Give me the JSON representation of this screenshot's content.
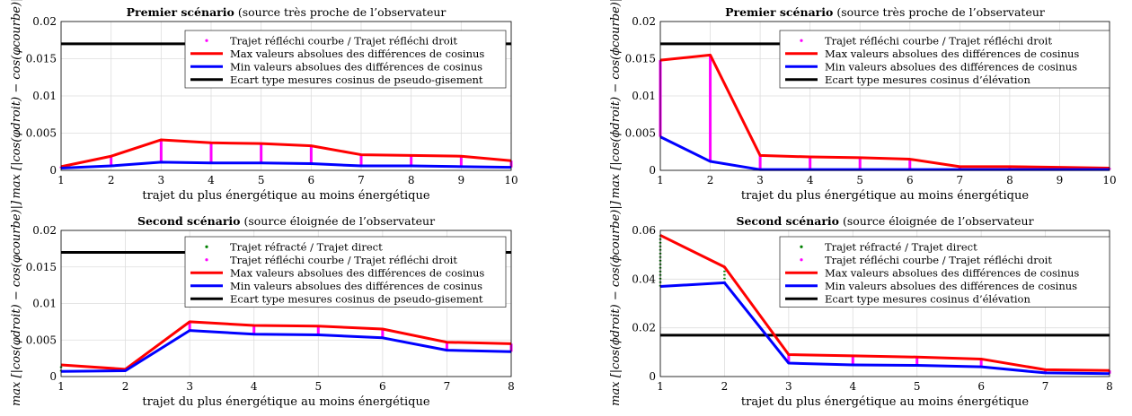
{
  "charts": [
    {
      "title_bold": "Premier scénario",
      "title_rest": " (source très proche de l’observateur",
      "xlabel": "trajet du plus énergétique au moins énergétique",
      "ylabel": "max [|cos(φdroit) − cos(φcourbe)|]",
      "ylabel_sym": "φ",
      "ticks_x": [
        "1",
        "2",
        "3",
        "4",
        "5",
        "6",
        "7",
        "8",
        "9",
        "10"
      ],
      "ticks_y": [
        "0",
        "0.005",
        "0.01",
        "0.015",
        "0.02"
      ],
      "legend": [
        "Trajet réfléchi courbe / Trajet réfléchi droit",
        "Max valeurs absolues des différences de cosinus",
        "Min valeurs absolues des différences de cosinus",
        "Ecart type mesures cosinus de pseudo-gisement"
      ]
    },
    {
      "title_bold": "Premier scénario",
      "title_rest": " (source très proche de l’observateur",
      "xlabel": "trajet du plus énergétique au moins énergétique",
      "ylabel": "max [|cos(ϕdroit) − cos(ϕcourbe)|]",
      "ylabel_sym": "ϕ",
      "ticks_x": [
        "1",
        "2",
        "3",
        "4",
        "5",
        "6",
        "7",
        "8",
        "9",
        "10"
      ],
      "ticks_y": [
        "0",
        "0.005",
        "0.01",
        "0.015",
        "0.02"
      ],
      "legend": [
        "Trajet réfléchi courbe / Trajet réfléchi droit",
        "Max valeurs absolues des différences de cosinus",
        "Min valeurs absolues des différences de cosinus",
        "Ecart type mesures cosinus d’élévation"
      ]
    },
    {
      "title_bold": "Second scénario",
      "title_rest": " (source éloignée de l’observateur",
      "xlabel": "trajet du plus énergétique au moins énergétique",
      "ylabel": "max [|cos(φdroit) − cos(φcourbe)|]",
      "ylabel_sym": "φ",
      "ticks_x": [
        "1",
        "2",
        "3",
        "4",
        "5",
        "6",
        "7",
        "8"
      ],
      "ticks_y": [
        "0",
        "0.005",
        "0.01",
        "0.015",
        "0.02"
      ],
      "legend": [
        "Trajet réfracté / Trajet direct",
        "Trajet réfléchi courbe / Trajet réfléchi droit",
        "Max valeurs absolues des différences de cosinus",
        "Min valeurs absolues des différences de cosinus",
        "Ecart type mesures cosinus de pseudo-gisement"
      ]
    },
    {
      "title_bold": "Second scénario",
      "title_rest": " (source éloignée de l’observateur",
      "xlabel": "trajet du plus énergétique au moins énergétique",
      "ylabel": "max [|cos(ϕdroit) − cos(ϕcourbe)|]",
      "ylabel_sym": "ϕ",
      "ticks_x": [
        "1",
        "2",
        "3",
        "4",
        "5",
        "6",
        "7",
        "8"
      ],
      "ticks_y": [
        "0",
        "0.02",
        "0.04",
        "0.06"
      ],
      "legend": [
        "Trajet réfracté / Trajet direct",
        "Trajet réfléchi courbe / Trajet réfléchi droit",
        "Max valeurs absolues des différences de cosinus",
        "Min valeurs absolues des différences de cosinus",
        "Ecart type mesures cosinus d’élévation"
      ]
    }
  ],
  "colors": {
    "max": "#ff0000",
    "min": "#0000ff",
    "std": "#000000",
    "reflected": "#ff00ff",
    "refracted": "#008000",
    "grid": "#dddddd"
  },
  "chart_data": [
    {
      "type": "line",
      "x": [
        1,
        2,
        3,
        4,
        5,
        6,
        7,
        8,
        9,
        10
      ],
      "xlim": [
        1,
        10
      ],
      "ylim": [
        0,
        0.02
      ],
      "grid": true,
      "legend_position": "top-right",
      "series": [
        {
          "name": "Max valeurs absolues des différences de cosinus",
          "values": [
            0.0005,
            0.0019,
            0.0041,
            0.0037,
            0.0036,
            0.0033,
            0.0021,
            0.002,
            0.0019,
            0.0013
          ]
        },
        {
          "name": "Min valeurs absolues des différences de cosinus",
          "values": [
            0.0003,
            0.0006,
            0.0011,
            0.001,
            0.001,
            0.0009,
            0.0006,
            0.0006,
            0.0005,
            0.0004
          ]
        },
        {
          "name": "Ecart type mesures cosinus de pseudo-gisement",
          "values": [
            0.017,
            0.017,
            0.017,
            0.017,
            0.017,
            0.017,
            0.017,
            0.017,
            0.017,
            0.017
          ]
        }
      ],
      "segments": [
        {
          "name": "Trajet réfléchi courbe / Trajet réfléchi droit",
          "x": [
            1,
            2,
            3,
            4,
            5,
            6,
            7,
            8,
            9,
            10
          ]
        }
      ]
    },
    {
      "type": "line",
      "x": [
        1,
        2,
        3,
        4,
        5,
        6,
        7,
        8,
        9,
        10
      ],
      "xlim": [
        1,
        10
      ],
      "ylim": [
        0,
        0.02
      ],
      "grid": true,
      "legend_position": "top-right",
      "series": [
        {
          "name": "Max valeurs absolues des différences de cosinus",
          "values": [
            0.0148,
            0.0155,
            0.002,
            0.0018,
            0.0017,
            0.0015,
            0.0005,
            0.0005,
            0.0004,
            0.0003
          ]
        },
        {
          "name": "Min valeurs absolues des différences de cosinus",
          "values": [
            0.0045,
            0.0012,
            0.0001,
            0.0001,
            0.0001,
            0.0001,
            0.0001,
            0.0001,
            0.0001,
            0.0001
          ]
        },
        {
          "name": "Ecart type mesures cosinus d’élévation",
          "values": [
            0.017,
            0.017,
            0.017,
            0.017,
            0.017,
            0.017,
            0.017,
            0.017,
            0.017,
            0.017
          ]
        }
      ],
      "segments": [
        {
          "name": "Trajet réfléchi courbe / Trajet réfléchi droit",
          "x": [
            1,
            2,
            3,
            4,
            5,
            6,
            7,
            8,
            9,
            10
          ]
        }
      ]
    },
    {
      "type": "line",
      "x": [
        1,
        2,
        3,
        4,
        5,
        6,
        7,
        8
      ],
      "xlim": [
        1,
        8
      ],
      "ylim": [
        0,
        0.02
      ],
      "grid": true,
      "legend_position": "top-right",
      "series": [
        {
          "name": "Max valeurs absolues des différences de cosinus",
          "values": [
            0.0016,
            0.001,
            0.0075,
            0.007,
            0.0069,
            0.0065,
            0.0047,
            0.0045
          ]
        },
        {
          "name": "Min valeurs absolues des différences de cosinus",
          "values": [
            0.0007,
            0.0008,
            0.0063,
            0.0058,
            0.0057,
            0.0053,
            0.0036,
            0.0034
          ]
        },
        {
          "name": "Ecart type mesures cosinus de pseudo-gisement",
          "values": [
            0.017,
            0.017,
            0.017,
            0.017,
            0.017,
            0.017,
            0.017,
            0.017
          ]
        }
      ],
      "segments": [
        {
          "name": "Trajet réfracté / Trajet direct",
          "x": [
            1
          ]
        },
        {
          "name": "Trajet réfléchi courbe / Trajet réfléchi droit",
          "x": [
            2,
            3,
            4,
            5,
            6,
            7,
            8
          ]
        }
      ]
    },
    {
      "type": "line",
      "x": [
        1,
        2,
        3,
        4,
        5,
        6,
        7,
        8
      ],
      "xlim": [
        1,
        8
      ],
      "ylim": [
        0,
        0.06
      ],
      "grid": true,
      "legend_position": "top-right",
      "series": [
        {
          "name": "Max valeurs absolues des différences de cosinus",
          "values": [
            0.058,
            0.045,
            0.009,
            0.0085,
            0.008,
            0.0072,
            0.0028,
            0.0025
          ]
        },
        {
          "name": "Min valeurs absolues des différences de cosinus",
          "values": [
            0.037,
            0.0385,
            0.0055,
            0.0048,
            0.0046,
            0.004,
            0.0015,
            0.0012
          ]
        },
        {
          "name": "Ecart type mesures cosinus d’élévation",
          "values": [
            0.017,
            0.017,
            0.017,
            0.017,
            0.017,
            0.017,
            0.017,
            0.017
          ]
        }
      ],
      "segments": [
        {
          "name": "Trajet réfracté / Trajet direct",
          "x": [
            1,
            2
          ]
        },
        {
          "name": "Trajet réfléchi courbe / Trajet réfléchi droit",
          "x": [
            3,
            4,
            5,
            6,
            7,
            8
          ]
        }
      ]
    }
  ]
}
